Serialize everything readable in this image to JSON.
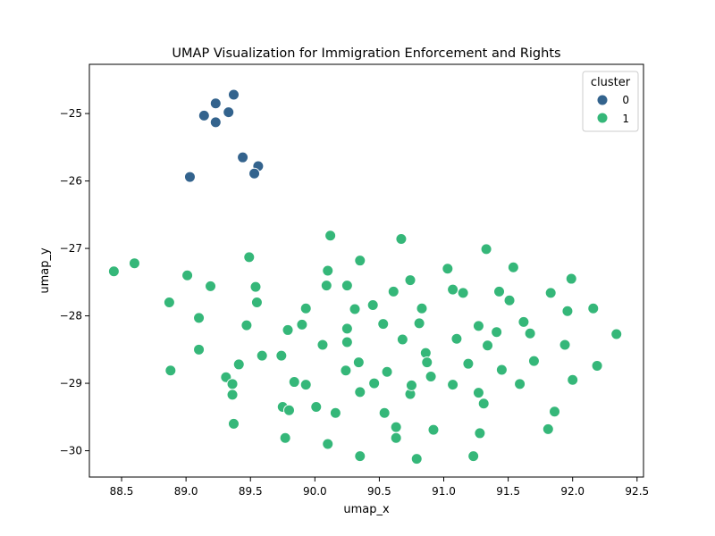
{
  "chart_data": {
    "type": "scatter",
    "title": "UMAP Visualization for Immigration Enforcement and Rights",
    "xlabel": "umap_x",
    "ylabel": "umap_y",
    "xlim": [
      88.25,
      92.55
    ],
    "ylim": [
      -30.39,
      -24.27
    ],
    "xticks": [
      88.5,
      89.0,
      89.5,
      90.0,
      90.5,
      91.0,
      91.5,
      92.0,
      92.5
    ],
    "yticks": [
      -30,
      -29,
      -28,
      -27,
      -26,
      -25
    ],
    "xtick_labels": [
      "88.5",
      "89.0",
      "89.5",
      "90.0",
      "90.5",
      "91.0",
      "91.5",
      "92.0",
      "92.5"
    ],
    "ytick_labels": [
      "−30",
      "−29",
      "−28",
      "−27",
      "−26",
      "−25"
    ],
    "grid": false,
    "legend": {
      "title": "cluster",
      "placement": "top-right"
    },
    "series": [
      {
        "name": "0",
        "color": "#33638d",
        "points": [
          [
            89.37,
            -24.72
          ],
          [
            89.23,
            -24.85
          ],
          [
            89.33,
            -24.98
          ],
          [
            89.14,
            -25.03
          ],
          [
            89.23,
            -25.13
          ],
          [
            89.44,
            -25.65
          ],
          [
            89.56,
            -25.78
          ],
          [
            89.53,
            -25.89
          ],
          [
            89.03,
            -25.94
          ]
        ]
      },
      {
        "name": "1",
        "color": "#35b779",
        "points": [
          [
            88.44,
            -27.34
          ],
          [
            88.6,
            -27.22
          ],
          [
            88.87,
            -27.8
          ],
          [
            89.01,
            -27.4
          ],
          [
            89.19,
            -27.56
          ],
          [
            89.1,
            -28.03
          ],
          [
            89.1,
            -28.5
          ],
          [
            88.88,
            -28.81
          ],
          [
            89.31,
            -28.91
          ],
          [
            89.36,
            -29.01
          ],
          [
            89.36,
            -29.17
          ],
          [
            89.41,
            -28.72
          ],
          [
            89.37,
            -29.6
          ],
          [
            89.47,
            -28.14
          ],
          [
            89.49,
            -27.13
          ],
          [
            89.54,
            -27.57
          ],
          [
            89.55,
            -27.8
          ],
          [
            89.59,
            -28.59
          ],
          [
            89.74,
            -28.59
          ],
          [
            89.75,
            -29.35
          ],
          [
            89.77,
            -29.81
          ],
          [
            89.79,
            -28.21
          ],
          [
            89.8,
            -29.4
          ],
          [
            89.84,
            -28.98
          ],
          [
            89.9,
            -28.13
          ],
          [
            89.93,
            -27.89
          ],
          [
            89.93,
            -29.02
          ],
          [
            90.01,
            -29.35
          ],
          [
            90.06,
            -28.43
          ],
          [
            90.09,
            -27.55
          ],
          [
            90.1,
            -27.33
          ],
          [
            90.12,
            -26.81
          ],
          [
            90.1,
            -29.9
          ],
          [
            90.16,
            -29.44
          ],
          [
            90.24,
            -28.81
          ],
          [
            90.25,
            -28.19
          ],
          [
            90.25,
            -28.39
          ],
          [
            90.25,
            -27.55
          ],
          [
            90.31,
            -27.9
          ],
          [
            90.34,
            -28.69
          ],
          [
            90.35,
            -27.18
          ],
          [
            90.35,
            -29.13
          ],
          [
            90.35,
            -30.08
          ],
          [
            90.45,
            -27.84
          ],
          [
            90.46,
            -29.0
          ],
          [
            90.53,
            -28.12
          ],
          [
            90.54,
            -29.44
          ],
          [
            90.56,
            -28.83
          ],
          [
            90.61,
            -27.64
          ],
          [
            90.63,
            -29.65
          ],
          [
            90.63,
            -29.81
          ],
          [
            90.67,
            -26.86
          ],
          [
            90.68,
            -28.35
          ],
          [
            90.74,
            -27.47
          ],
          [
            90.74,
            -29.16
          ],
          [
            90.75,
            -29.03
          ],
          [
            90.79,
            -30.12
          ],
          [
            90.81,
            -28.11
          ],
          [
            90.83,
            -27.89
          ],
          [
            90.86,
            -28.55
          ],
          [
            90.87,
            -28.69
          ],
          [
            90.9,
            -28.9
          ],
          [
            90.92,
            -29.69
          ],
          [
            91.03,
            -27.3
          ],
          [
            91.07,
            -27.61
          ],
          [
            91.07,
            -29.02
          ],
          [
            91.1,
            -28.34
          ],
          [
            91.15,
            -27.66
          ],
          [
            91.19,
            -28.71
          ],
          [
            91.23,
            -30.08
          ],
          [
            91.27,
            -28.15
          ],
          [
            91.27,
            -29.14
          ],
          [
            91.28,
            -29.74
          ],
          [
            91.31,
            -29.3
          ],
          [
            91.33,
            -27.01
          ],
          [
            91.34,
            -28.44
          ],
          [
            91.41,
            -28.24
          ],
          [
            91.43,
            -27.64
          ],
          [
            91.45,
            -28.8
          ],
          [
            91.51,
            -27.77
          ],
          [
            91.54,
            -27.28
          ],
          [
            91.59,
            -29.01
          ],
          [
            91.62,
            -28.09
          ],
          [
            91.67,
            -28.26
          ],
          [
            91.7,
            -28.67
          ],
          [
            91.81,
            -29.68
          ],
          [
            91.83,
            -27.66
          ],
          [
            91.86,
            -29.42
          ],
          [
            91.94,
            -28.43
          ],
          [
            91.96,
            -27.93
          ],
          [
            91.99,
            -27.45
          ],
          [
            92.0,
            -28.95
          ],
          [
            92.16,
            -27.89
          ],
          [
            92.19,
            -28.74
          ],
          [
            92.34,
            -28.27
          ]
        ]
      }
    ]
  }
}
